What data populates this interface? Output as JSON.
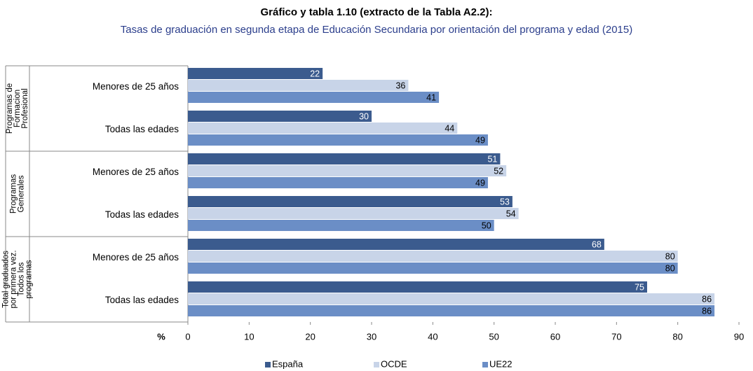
{
  "chart_data": {
    "type": "hbar",
    "title": "Gráfico y tabla 1.10 (extracto de la Tabla A2.2):",
    "subtitle": "Tasas de graduación en segunda etapa de Educación Secundaria por orientación del programa y edad (2015)",
    "x_label": "%",
    "groups": [
      {
        "lines": [
          "Programas de",
          "Formacion",
          "Profesional"
        ]
      },
      {
        "lines": [
          "Programas",
          "Generales"
        ]
      },
      {
        "lines": [
          "Total graduados",
          "por primera vez.",
          "Todos los",
          "programas"
        ]
      }
    ],
    "categories": [
      "Menores de 25 años",
      "Todas las edades",
      "Menores de 25 años",
      "Todas las edades",
      "Menores de 25 años",
      "Todas las edades"
    ],
    "series": [
      {
        "name": "España",
        "color": "#3b5b8e",
        "label_color": "#ffffff",
        "values": [
          22,
          30,
          51,
          53,
          68,
          75
        ]
      },
      {
        "name": "OCDE",
        "color": "#c8d4e8",
        "label_color": "#000000",
        "values": [
          36,
          44,
          52,
          54,
          80,
          86
        ]
      },
      {
        "name": "UE22",
        "color": "#6b8ec6",
        "label_color": "#000000",
        "values": [
          41,
          49,
          49,
          50,
          80,
          86
        ]
      }
    ],
    "xlim": [
      0,
      90
    ],
    "xticks": [
      0,
      10,
      20,
      30,
      40,
      50,
      60,
      70,
      80,
      90
    ],
    "legend": "bottom"
  }
}
